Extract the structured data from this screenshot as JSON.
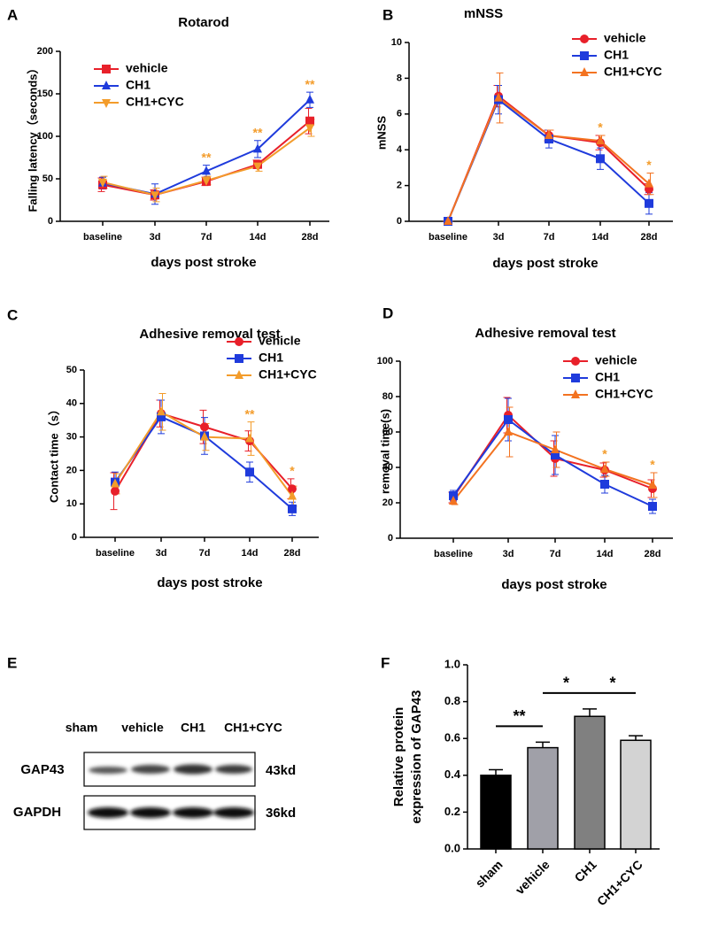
{
  "chart_data": [
    {
      "type": "line",
      "panel": "A",
      "title": "Rotarod",
      "x_label": "days post stroke",
      "y_label": "Falling latency（seconds）",
      "categories": [
        "baseline",
        "3d",
        "7d",
        "14d",
        "28d"
      ],
      "ylim": [
        0,
        200
      ],
      "yticks": [
        0,
        50,
        100,
        150,
        200
      ],
      "legend": "upper left",
      "series": [
        {
          "name": "vehicle",
          "color": "#e8202a",
          "marker": "square",
          "values": [
            43,
            31,
            47,
            67,
            118
          ],
          "errors": [
            8,
            6,
            5,
            5,
            15
          ]
        },
        {
          "name": "CH1",
          "color": "#1f3bdc",
          "marker": "triangle-up",
          "values": [
            45,
            32,
            59,
            85,
            143
          ],
          "errors": [
            7,
            12,
            7,
            10,
            9
          ]
        },
        {
          "name": "CH1+CYC",
          "color": "#f39c2b",
          "marker": "triangle-down",
          "values": [
            46,
            31,
            48,
            65,
            110
          ],
          "errors": [
            7,
            8,
            5,
            6,
            10
          ]
        }
      ],
      "annotations": [
        {
          "category": 2,
          "text": "**",
          "color": "#f39c2b"
        },
        {
          "category": 3,
          "text": "**",
          "color": "#f39c2b"
        },
        {
          "category": 4,
          "text": "**",
          "color": "#f39c2b"
        }
      ]
    },
    {
      "type": "line",
      "panel": "B",
      "title": "mNSS",
      "x_label": "days post stroke",
      "y_label": "mNSS",
      "categories": [
        "baseline",
        "3d",
        "7d",
        "14d",
        "28d"
      ],
      "ylim": [
        0,
        10
      ],
      "yticks": [
        0,
        2,
        4,
        6,
        8,
        10
      ],
      "legend": "upper right",
      "series": [
        {
          "name": "vehicle",
          "color": "#e8202a",
          "marker": "circle",
          "values": [
            0,
            7.0,
            4.8,
            4.4,
            1.8
          ],
          "errors": [
            0,
            0.6,
            0.3,
            0.4,
            0.3
          ]
        },
        {
          "name": "CH1",
          "color": "#1f3bdc",
          "marker": "square",
          "values": [
            0,
            6.8,
            4.6,
            3.5,
            1.0
          ],
          "errors": [
            0,
            0.8,
            0.5,
            0.6,
            0.6
          ]
        },
        {
          "name": "CH1+CYC",
          "color": "#f37321",
          "marker": "triangle-up",
          "values": [
            0,
            6.9,
            4.8,
            4.5,
            2.1
          ],
          "errors": [
            0,
            1.4,
            0.3,
            0.3,
            0.6
          ]
        }
      ],
      "annotations": [
        {
          "category": 3,
          "text": "*",
          "color": "#f39c2b"
        },
        {
          "category": 4,
          "text": "*",
          "color": "#f39c2b"
        }
      ]
    },
    {
      "type": "line",
      "panel": "C",
      "title": "Adhesive removal test",
      "x_label": "days post stroke",
      "y_label": "Contact time（s）",
      "categories": [
        "baseline",
        "3d",
        "7d",
        "14d",
        "28d"
      ],
      "ylim": [
        0,
        50
      ],
      "yticks": [
        0,
        10,
        20,
        30,
        40,
        50
      ],
      "legend": "upper right",
      "series": [
        {
          "name": "vehicle",
          "color": "#e8202a",
          "marker": "circle",
          "values": [
            13.8,
            37,
            33,
            28.8,
            14.5
          ],
          "errors": [
            5.5,
            4,
            5,
            3,
            3
          ]
        },
        {
          "name": "CH1",
          "color": "#1f3bdc",
          "marker": "square",
          "values": [
            16.5,
            36,
            30.3,
            19.5,
            8.5
          ],
          "errors": [
            3,
            5,
            5.5,
            3,
            2
          ]
        },
        {
          "name": "CH1+CYC",
          "color": "#f39c2b",
          "marker": "triangle-up",
          "values": [
            16,
            37.5,
            30,
            29.5,
            12.3
          ],
          "errors": [
            3,
            5.5,
            4,
            5,
            3
          ]
        }
      ],
      "annotations": [
        {
          "category": 3,
          "text": "**",
          "color": "#f39c2b"
        },
        {
          "category": 4,
          "text": "*",
          "color": "#f39c2b"
        }
      ]
    },
    {
      "type": "line",
      "panel": "D",
      "title": "Adhesive removal test",
      "x_label": "days post stroke",
      "y_label": "removal time(s)",
      "categories": [
        "baseline",
        "3d",
        "7d",
        "14d",
        "28d"
      ],
      "ylim": [
        0,
        100
      ],
      "yticks": [
        0,
        20,
        40,
        60,
        80,
        100
      ],
      "legend": "upper right",
      "series": [
        {
          "name": "vehicle",
          "color": "#e8202a",
          "marker": "circle",
          "values": [
            23,
            69.5,
            45,
            38.5,
            28
          ],
          "errors": [
            3,
            10,
            10,
            4,
            5
          ]
        },
        {
          "name": "CH1",
          "color": "#1f3bdc",
          "marker": "square",
          "values": [
            24,
            67,
            47,
            30.5,
            18
          ],
          "errors": [
            3,
            12,
            11,
            5,
            4
          ]
        },
        {
          "name": "CH1+CYC",
          "color": "#f37321",
          "marker": "triangle-up",
          "values": [
            21,
            60,
            50,
            39,
            30
          ],
          "errors": [
            2,
            14,
            10,
            4,
            7
          ]
        }
      ],
      "annotations": [
        {
          "category": 3,
          "text": "*",
          "color": "#f39c2b"
        },
        {
          "category": 4,
          "text": "*",
          "color": "#f39c2b"
        }
      ]
    },
    {
      "type": "bar",
      "panel": "F",
      "y_label": [
        "Relative protein",
        "expression of GAP43"
      ],
      "categories": [
        "sham",
        "vehicle",
        "CH1",
        "CH1+CYC"
      ],
      "values": [
        0.4,
        0.55,
        0.72,
        0.59
      ],
      "errors": [
        0.03,
        0.03,
        0.04,
        0.025
      ],
      "colors": [
        "#000000",
        "#a0a0a8",
        "#808080",
        "#d3d3d3"
      ],
      "ylim": [
        0,
        1.0
      ],
      "yticks": [
        {
          "value": 0,
          "label": "0.0"
        },
        0.2,
        0.4,
        0.6,
        0.8,
        {
          "value": 1.0,
          "label": "1.0"
        }
      ],
      "annotations": [
        {
          "between": [
            0,
            1
          ],
          "text": "**"
        },
        {
          "between": [
            1,
            2
          ],
          "text": "*"
        },
        {
          "between": [
            2,
            3
          ],
          "text": "*"
        }
      ]
    }
  ],
  "blot": {
    "panel": "E",
    "lanes": [
      "sham",
      "vehicle",
      "CH1",
      "CH1+CYC"
    ],
    "rows": [
      {
        "name": "GAP43",
        "size": "43kd"
      },
      {
        "name": "GAPDH",
        "size": "36kd"
      }
    ]
  }
}
